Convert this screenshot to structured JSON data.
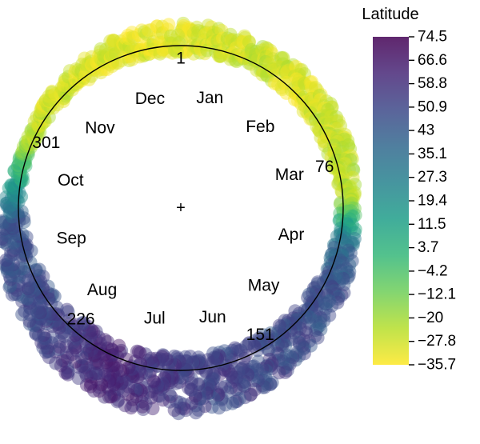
{
  "chart_data": {
    "type": "scatter",
    "coordinate_system": "polar",
    "angular_variable": "day of year",
    "angular_range": [
      1,
      365
    ],
    "direction": "clockwise",
    "zero_at": "top",
    "center_label": "+",
    "month_labels": [
      "Jan",
      "Feb",
      "Mar",
      "Apr",
      "May",
      "Jun",
      "Jul",
      "Aug",
      "Sep",
      "Oct",
      "Nov",
      "Dec"
    ],
    "day_of_year_ticks": [
      1,
      76,
      151,
      226,
      301
    ],
    "color_variable": {
      "title": "Latitude",
      "min": -35.7,
      "max": 74.5,
      "ticks": [
        74.5,
        66.6,
        58.8,
        50.9,
        43,
        35.1,
        27.3,
        19.4,
        11.5,
        3.7,
        -4.2,
        -12.1,
        -20,
        -27.8,
        -35.7
      ],
      "colormap": "viridis",
      "colors": [
        "#fde725",
        "#b5de2b",
        "#6ece58",
        "#35b779",
        "#1f9e89",
        "#26828e",
        "#31688e",
        "#3e4989",
        "#482878",
        "#440154"
      ]
    },
    "point_alpha": 0.45,
    "density_profile": [
      {
        "day": 1,
        "spread": 0.55,
        "latitude": -31
      },
      {
        "day": 15,
        "spread": 0.5,
        "latitude": -29
      },
      {
        "day": 30,
        "spread": 0.45,
        "latitude": -26
      },
      {
        "day": 45,
        "spread": 0.5,
        "latitude": -30
      },
      {
        "day": 60,
        "spread": 0.45,
        "latitude": -28
      },
      {
        "day": 75,
        "spread": 0.4,
        "latitude": -25
      },
      {
        "day": 90,
        "spread": 0.25,
        "latitude": -22
      },
      {
        "day": 105,
        "spread": 0.35,
        "latitude": 36
      },
      {
        "day": 120,
        "spread": 0.5,
        "latitude": 47
      },
      {
        "day": 135,
        "spread": 0.6,
        "latitude": 48
      },
      {
        "day": 150,
        "spread": 0.75,
        "latitude": 50
      },
      {
        "day": 165,
        "spread": 0.9,
        "latitude": 52
      },
      {
        "day": 180,
        "spread": 1.0,
        "latitude": 54
      },
      {
        "day": 195,
        "spread": 1.0,
        "latitude": 58
      },
      {
        "day": 210,
        "spread": 0.95,
        "latitude": 63
      },
      {
        "day": 225,
        "spread": 0.85,
        "latitude": 56
      },
      {
        "day": 240,
        "spread": 0.7,
        "latitude": 50
      },
      {
        "day": 255,
        "spread": 0.55,
        "latitude": 48
      },
      {
        "day": 270,
        "spread": 0.4,
        "latitude": 46
      },
      {
        "day": 285,
        "spread": 0.2,
        "latitude": 10
      },
      {
        "day": 300,
        "spread": 0.15,
        "latitude": -24
      },
      {
        "day": 315,
        "spread": 0.25,
        "latitude": -28
      },
      {
        "day": 330,
        "spread": 0.35,
        "latitude": -30
      },
      {
        "day": 345,
        "spread": 0.45,
        "latitude": -31
      },
      {
        "day": 360,
        "spread": 0.5,
        "latitude": -31
      }
    ]
  }
}
